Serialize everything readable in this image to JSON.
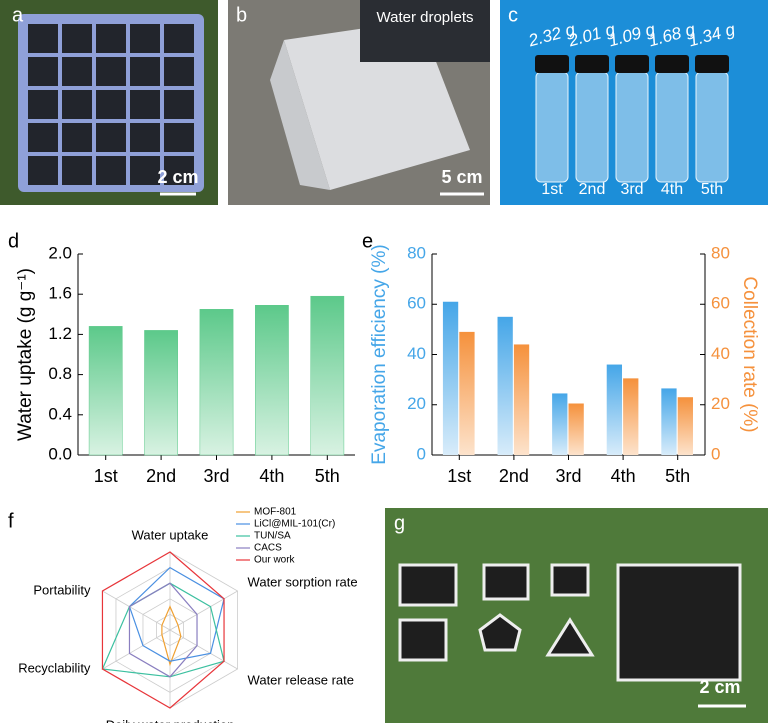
{
  "panels": {
    "a": {
      "letter": "a",
      "scale_bar": "2 cm"
    },
    "b": {
      "letter": "b",
      "inset": "Water droplets",
      "scale_bar": "5 cm"
    },
    "c": {
      "letter": "c",
      "masses": [
        "2.32 g",
        "2.01 g",
        "1.09 g",
        "1.68 g",
        "1.34 g"
      ],
      "vials": [
        "1st",
        "2nd",
        "3rd",
        "4th",
        "5th"
      ]
    },
    "g": {
      "letter": "g",
      "scale_bar": "2 cm"
    }
  },
  "chart_data": [
    {
      "type": "bar",
      "letter": "d",
      "ylabel": "Water uptake (g g⁻¹)",
      "categories": [
        "1st",
        "2nd",
        "3rd",
        "4th",
        "5th"
      ],
      "values": [
        1.28,
        1.24,
        1.45,
        1.49,
        1.58
      ],
      "color": "#5cc98a",
      "ylim": [
        0,
        2.0
      ],
      "yticks": [
        {
          "value": 0,
          "label": "0.0"
        },
        0.4,
        0.8,
        1.2,
        1.6,
        {
          "value": 2.0,
          "label": "2.0"
        }
      ]
    },
    {
      "type": "bar",
      "letter": "e",
      "ylabel": "Evaporation efficiency (%)",
      "y2label": "Collection rate (%)",
      "categories": [
        "1st",
        "2nd",
        "3rd",
        "4th",
        "5th"
      ],
      "series": [
        {
          "name": "Evaporation efficiency",
          "color": "#45a6e8",
          "values": [
            61,
            55,
            24.5,
            36,
            26.5
          ]
        },
        {
          "name": "Collection rate",
          "color": "#f5913c",
          "axis": "y2",
          "values": [
            49,
            44,
            20.5,
            30.5,
            23
          ]
        }
      ],
      "ylim": [
        0,
        80
      ],
      "yticks": [
        0,
        20,
        40,
        60,
        80
      ],
      "y2lim": [
        0,
        80
      ],
      "y2ticks": [
        0,
        20,
        40,
        60,
        80
      ]
    },
    {
      "type": "radar",
      "letter": "f",
      "axes": [
        "Water uptake",
        "Water sorption rate",
        "Water release rate",
        "Daily water production",
        "Recyclability",
        "Portability"
      ],
      "rlim": [
        0,
        5
      ],
      "rticks": [
        1,
        2,
        3,
        4,
        5
      ],
      "series": [
        {
          "name": "MOF-801",
          "color": "#f0a030",
          "values": [
            1.5,
            0.6,
            0.8,
            2.2,
            0.6,
            0.6
          ]
        },
        {
          "name": "LiCl@MIL-101(Cr)",
          "color": "#4a90e2",
          "values": [
            4,
            4,
            3,
            2,
            2,
            3
          ]
        },
        {
          "name": "TUN/SA",
          "color": "#3cc0a0",
          "values": [
            3,
            3,
            4,
            3,
            5,
            3
          ]
        },
        {
          "name": "CACS",
          "color": "#8a7fc0",
          "values": [
            3,
            2,
            2,
            3,
            3,
            3
          ]
        },
        {
          "name": "Our work",
          "color": "#e8353a",
          "values": [
            5,
            4,
            4,
            5,
            5,
            5
          ]
        }
      ]
    }
  ]
}
